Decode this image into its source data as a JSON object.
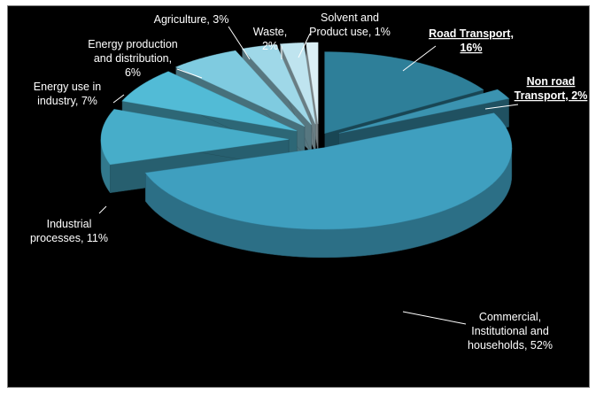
{
  "chart_data": {
    "type": "pie",
    "title": "",
    "style": "3d-exploded",
    "background": "#000000",
    "label_color": "#ffffff",
    "slices": [
      {
        "label_lines": [
          "Road Transport,",
          "16%"
        ],
        "value": 16,
        "color": "#2e7f99",
        "bold_underline": true
      },
      {
        "label_lines": [
          "Non road",
          "Transport,  2%"
        ],
        "value": 2,
        "color": "#3b93b0",
        "bold_underline": true
      },
      {
        "label_lines": [
          "Commercial,",
          "Institutional and",
          "households, 52%"
        ],
        "value": 52,
        "color": "#3f9fbf",
        "bold_underline": false
      },
      {
        "label_lines": [
          "Industrial",
          "processes, 11%"
        ],
        "value": 11,
        "color": "#47adc9",
        "bold_underline": false
      },
      {
        "label_lines": [
          "Energy use in",
          "industry, 7%"
        ],
        "value": 7,
        "color": "#52bbd6",
        "bold_underline": false
      },
      {
        "label_lines": [
          "Energy production",
          "and distribution,",
          "6%"
        ],
        "value": 6,
        "color": "#7fcbe0",
        "bold_underline": false
      },
      {
        "label_lines": [
          "Agriculture, 3%"
        ],
        "value": 3,
        "color": "#9fd8e8",
        "bold_underline": false
      },
      {
        "label_lines": [
          "Waste,",
          "2%"
        ],
        "value": 2,
        "color": "#bfe4ef",
        "bold_underline": false
      },
      {
        "label_lines": [
          "Solvent and",
          "Product use, 1%"
        ],
        "value": 1,
        "color": "#dcf0f6",
        "bold_underline": false
      }
    ]
  }
}
